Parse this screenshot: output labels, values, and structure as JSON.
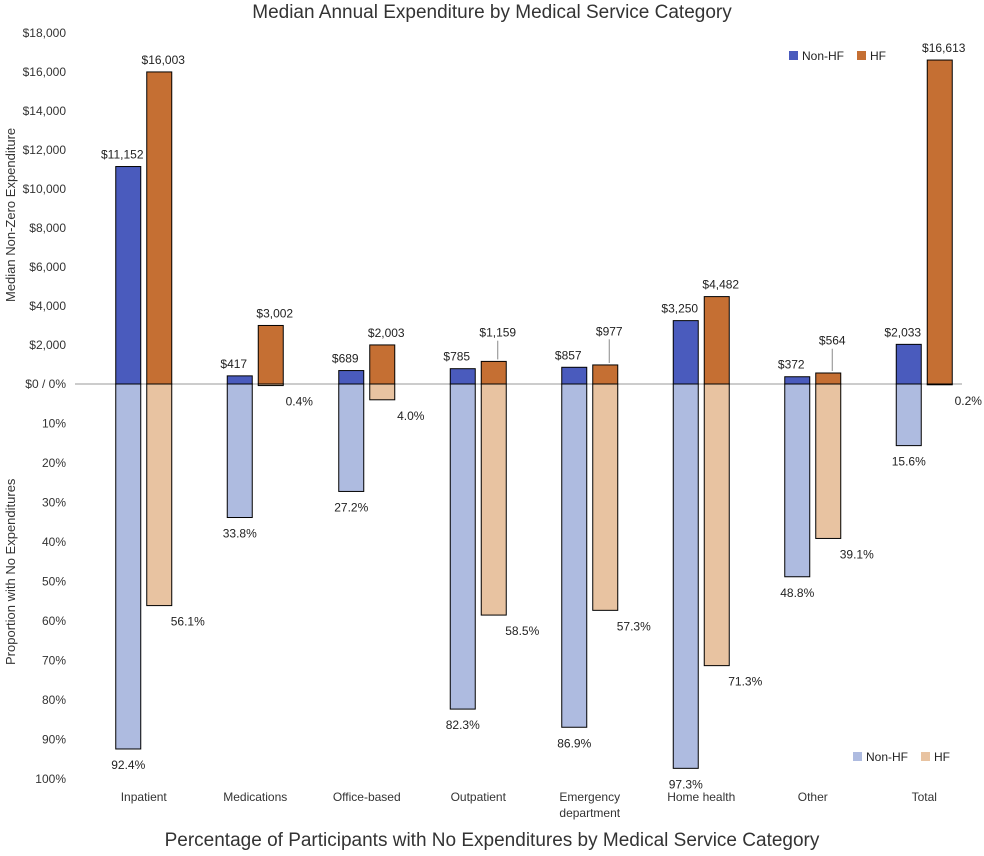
{
  "chart_data": {
    "type": "bar",
    "title": "Median Annual Expenditure by Medical Service Category",
    "bottom_title": "Percentage of Participants with No Expenditures by Medical Service Category",
    "ylabel_top": "Median Non-Zero Expenditure",
    "ylabel_bottom": "Proportion with No Expenditures",
    "categories": [
      "Inpatient",
      "Medications",
      "Office-based",
      "Outpatient",
      "Emergency department",
      "Home health",
      "Other",
      "Total"
    ],
    "expenditure": {
      "ylim": [
        0,
        18000
      ],
      "ticks": [
        "$0 / 0%",
        "$2,000",
        "$4,000",
        "$6,000",
        "$8,000",
        "$10,000",
        "$12,000",
        "$14,000",
        "$16,000",
        "$18,000"
      ],
      "series": [
        {
          "name": "Non-HF",
          "color": "#4a5bbd",
          "values": [
            11152,
            417,
            689,
            785,
            857,
            3250,
            372,
            2033
          ],
          "labels": [
            "$11,152",
            "$417",
            "$689",
            "$785",
            "$857",
            "$3,250",
            "$372",
            "$2,033"
          ]
        },
        {
          "name": "HF",
          "color": "#c56f33",
          "values": [
            16003,
            3002,
            2003,
            1159,
            977,
            4482,
            564,
            16613
          ],
          "labels": [
            "$16,003",
            "$3,002",
            "$2,003",
            "$1,159",
            "$977",
            "$4,482",
            "$564",
            "$16,613"
          ]
        }
      ],
      "legend_position": "top-right"
    },
    "no_expenditure": {
      "ylim": [
        0,
        100
      ],
      "ticks": [
        "10%",
        "20%",
        "30%",
        "40%",
        "50%",
        "60%",
        "70%",
        "80%",
        "90%",
        "100%"
      ],
      "series": [
        {
          "name": "Non-HF",
          "color": "#aebbe0",
          "values": [
            92.4,
            33.8,
            27.2,
            82.3,
            86.9,
            97.3,
            48.8,
            15.6
          ],
          "labels": [
            "92.4%",
            "33.8%",
            "27.2%",
            "82.3%",
            "86.9%",
            "97.3%",
            "48.8%",
            "15.6%"
          ]
        },
        {
          "name": "HF",
          "color": "#e8c3a1",
          "values": [
            56.1,
            0.4,
            4.0,
            58.5,
            57.3,
            71.3,
            39.1,
            0.2
          ],
          "labels": [
            "56.1%",
            "0.4%",
            "4.0%",
            "58.5%",
            "57.3%",
            "71.3%",
            "39.1%",
            "0.2%"
          ]
        }
      ],
      "legend_position": "bottom-right"
    }
  }
}
